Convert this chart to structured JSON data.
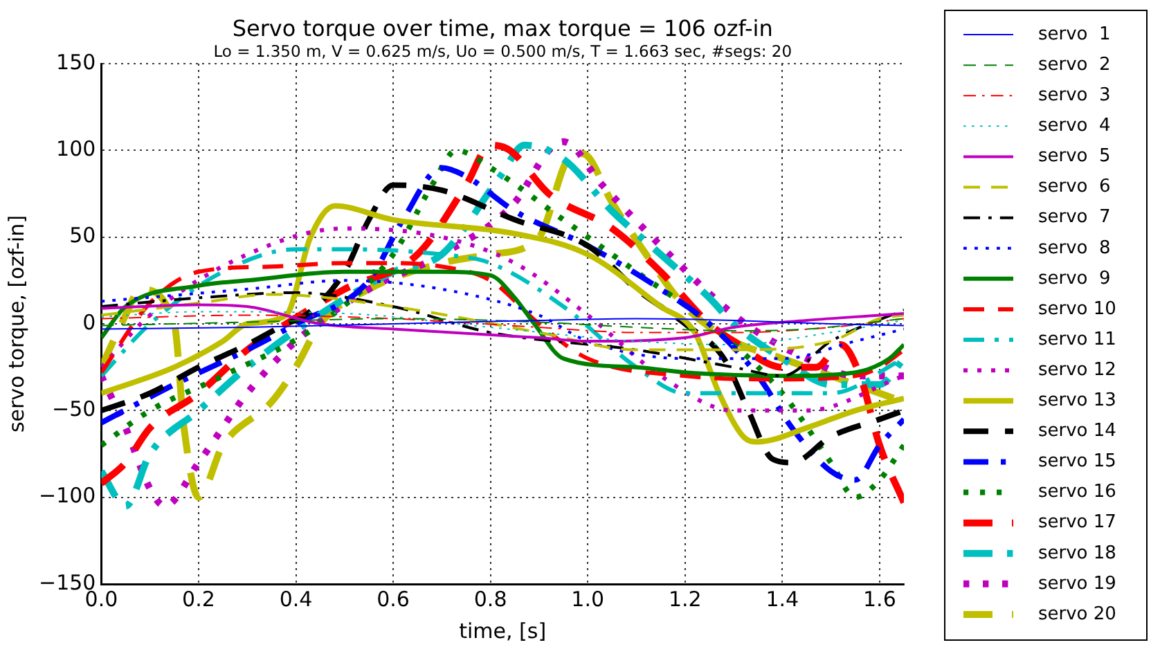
{
  "chart_data": {
    "type": "line",
    "title": "Servo torque over time, max torque = 106 ozf-in",
    "subtitle": "Lo = 1.350 m, V = 0.625 m/s, Uo = 0.500 m/s, T = 1.663 sec, #segs: 20",
    "xlabel": "time, [s]",
    "ylabel": "servo torque, [ozf-in]",
    "xlim": [
      0,
      1.65
    ],
    "xticks": [
      {
        "value": 0,
        "label": "0.0"
      },
      {
        "value": 0.2,
        "label": "0.2"
      },
      {
        "value": 0.4,
        "label": "0.4"
      },
      {
        "value": 0.6,
        "label": "0.6"
      },
      {
        "value": 0.8,
        "label": "0.8"
      },
      {
        "value": 1,
        "label": "1.0"
      },
      {
        "value": 1.2,
        "label": "1.2"
      },
      {
        "value": 1.4,
        "label": "1.4"
      },
      {
        "value": 1.6,
        "label": "1.6"
      }
    ],
    "ylim": [
      -150,
      150
    ],
    "yticks": [
      -150,
      -100,
      -50,
      0,
      50,
      100,
      150
    ],
    "grid": true,
    "legend": "right",
    "marker": "none",
    "series": [
      {
        "name": "servo  1",
        "color": "#0000ff",
        "line_style": "solid",
        "x": [
          0,
          0.3,
          0.6,
          0.9,
          1.1,
          1.3,
          1.5,
          1.65
        ],
        "values": [
          -3,
          -2,
          0,
          2,
          3,
          2,
          0,
          -1
        ]
      },
      {
        "name": "servo  2",
        "color": "#008000",
        "line_style": "dashed",
        "x": [
          0,
          0.3,
          0.6,
          0.9,
          1.1,
          1.3,
          1.45,
          1.65
        ],
        "values": [
          -1,
          1,
          3,
          1,
          -2,
          -4,
          -3,
          3
        ]
      },
      {
        "name": "servo  3",
        "color": "#ff0000",
        "line_style": "dashdot",
        "x": [
          0,
          0.3,
          0.6,
          0.9,
          1.1,
          1.3,
          1.5,
          1.65
        ],
        "values": [
          3,
          5,
          3,
          -2,
          -5,
          -5,
          -2,
          3
        ]
      },
      {
        "name": "servo  4",
        "color": "#00bfbf",
        "line_style": "dotted",
        "x": [
          0,
          0.2,
          0.5,
          0.8,
          1.1,
          1.3,
          1.5,
          1.65
        ],
        "values": [
          4,
          7,
          6,
          -2,
          -10,
          -12,
          -5,
          2
        ]
      },
      {
        "name": "servo  5",
        "color": "#bf00bf",
        "line_style": "solid",
        "x": [
          0,
          0.2,
          0.3,
          0.45,
          0.6,
          0.9,
          1.0,
          1.2,
          1.3,
          1.45,
          1.6,
          1.65
        ],
        "values": [
          9,
          11,
          10,
          0,
          -3,
          -8,
          -10,
          -8,
          -2,
          2,
          5,
          6
        ]
      },
      {
        "name": "servo  6",
        "color": "#bfbf00",
        "line_style": "dashed",
        "x": [
          0,
          0.2,
          0.35,
          0.6,
          0.9,
          1.1,
          1.3,
          1.5,
          1.6,
          1.65
        ],
        "values": [
          5,
          12,
          17,
          10,
          -5,
          -15,
          -15,
          -10,
          3,
          5
        ]
      },
      {
        "name": "servo  7",
        "color": "#000000",
        "line_style": "dashdot",
        "x": [
          0,
          0.2,
          0.4,
          0.6,
          0.8,
          1.1,
          1.3,
          1.4,
          1.5,
          1.65
        ],
        "values": [
          10,
          15,
          18,
          10,
          -5,
          -15,
          -25,
          -30,
          -10,
          8
        ]
      },
      {
        "name": "servo  8",
        "color": "#0000ff",
        "line_style": "dotted",
        "x": [
          0,
          0.3,
          0.5,
          0.7,
          0.9,
          1.0,
          1.2,
          1.4,
          1.55,
          1.65
        ],
        "values": [
          13,
          20,
          25,
          20,
          5,
          -10,
          -20,
          -20,
          -10,
          -3
        ]
      },
      {
        "name": "servo  9",
        "color": "#008000",
        "line_style": "solid",
        "x": [
          0,
          0.05,
          0.2,
          0.3,
          0.5,
          0.7,
          0.8,
          0.85,
          0.89,
          0.95,
          1.1,
          1.2,
          1.4,
          1.55,
          1.62,
          1.65
        ],
        "values": [
          -8,
          10,
          22,
          25,
          30,
          30,
          28,
          15,
          0,
          -20,
          -25,
          -28,
          -30,
          -28,
          -20,
          -12
        ]
      },
      {
        "name": "servo 10",
        "color": "#ff0000",
        "line_style": "dashed",
        "x": [
          0,
          0.1,
          0.2,
          0.35,
          0.5,
          0.6,
          0.7,
          0.8,
          0.9,
          1.0,
          1.2,
          1.4,
          1.55,
          1.6,
          1.65
        ],
        "values": [
          -28,
          12,
          30,
          33,
          35,
          35,
          33,
          25,
          0,
          -20,
          -30,
          -32,
          -30,
          -25,
          -15
        ]
      },
      {
        "name": "servo 11",
        "color": "#00bfbf",
        "line_style": "dashdot",
        "x": [
          0,
          0.1,
          0.25,
          0.4,
          0.5,
          0.7,
          0.8,
          0.95,
          1.1,
          1.2,
          1.5,
          1.65
        ],
        "values": [
          -30,
          0,
          30,
          43,
          43,
          40,
          35,
          10,
          -25,
          -40,
          -40,
          -20
        ]
      },
      {
        "name": "servo 12",
        "color": "#bf00bf",
        "line_style": "dotted",
        "x": [
          0,
          0.1,
          0.3,
          0.5,
          0.7,
          0.85,
          1.0,
          1.15,
          1.3,
          1.45,
          1.65
        ],
        "values": [
          -25,
          5,
          40,
          55,
          50,
          35,
          5,
          -30,
          -50,
          -50,
          -30
        ]
      },
      {
        "name": "servo 13",
        "color": "#bfbf00",
        "line_style": "solid",
        "x": [
          0,
          0.15,
          0.25,
          0.3,
          0.38,
          0.43,
          0.48,
          0.6,
          0.85,
          1.0,
          1.15,
          1.22,
          1.27,
          1.32,
          1.35,
          1.45,
          1.55,
          1.65
        ],
        "values": [
          -40,
          -25,
          -10,
          0,
          5,
          50,
          68,
          60,
          52,
          40,
          10,
          -5,
          -40,
          -65,
          -68,
          -60,
          -50,
          -43
        ]
      },
      {
        "name": "servo 14",
        "color": "#000000",
        "line_style": "dashed",
        "x": [
          0,
          0.1,
          0.2,
          0.3,
          0.38,
          0.42,
          0.5,
          0.55,
          0.6,
          0.7,
          0.85,
          1.0,
          1.1,
          1.2,
          1.28,
          1.33,
          1.38,
          1.42,
          1.5,
          1.6,
          1.65
        ],
        "values": [
          -50,
          -40,
          -25,
          -12,
          0,
          5,
          30,
          60,
          80,
          77,
          60,
          45,
          20,
          0,
          -20,
          -50,
          -78,
          -80,
          -65,
          -55,
          -50
        ]
      },
      {
        "name": "servo 15",
        "color": "#0000ff",
        "line_style": "dashdot",
        "x": [
          0,
          0.15,
          0.3,
          0.4,
          0.55,
          0.62,
          0.7,
          0.75,
          0.85,
          1.0,
          1.15,
          1.25,
          1.35,
          1.42,
          1.5,
          1.55,
          1.6,
          1.65
        ],
        "values": [
          -57,
          -35,
          -15,
          0,
          25,
          60,
          90,
          85,
          65,
          45,
          20,
          0,
          -30,
          -60,
          -85,
          -90,
          -70,
          -55
        ]
      },
      {
        "name": "servo 16",
        "color": "#008000",
        "line_style": "dotted",
        "x": [
          0,
          0.1,
          0.25,
          0.45,
          0.6,
          0.68,
          0.73,
          0.8,
          0.95,
          1.1,
          1.25,
          1.4,
          1.5,
          1.55,
          1.6,
          1.65
        ],
        "values": [
          -70,
          -50,
          -30,
          0,
          40,
          80,
          100,
          90,
          60,
          30,
          0,
          -40,
          -80,
          -100,
          -90,
          -70
        ]
      },
      {
        "name": "servo 17",
        "color": "#ff0000",
        "line_style": "dashed",
        "x": [
          0,
          0.05,
          0.1,
          0.2,
          0.3,
          0.38,
          0.5,
          0.65,
          0.75,
          0.8,
          0.84,
          0.92,
          1.05,
          1.15,
          1.25,
          1.3,
          1.4,
          1.47,
          1.52,
          1.56,
          1.6,
          1.65
        ],
        "values": [
          -92,
          -80,
          -60,
          -40,
          -15,
          0,
          20,
          40,
          80,
          103,
          100,
          75,
          55,
          30,
          0,
          -10,
          -25,
          -25,
          -12,
          -30,
          -70,
          -103
        ]
      },
      {
        "name": "servo 18",
        "color": "#00bfbf",
        "line_style": "dashdot",
        "x": [
          0,
          0.05,
          0.1,
          0.2,
          0.3,
          0.42,
          0.6,
          0.7,
          0.82,
          0.87,
          0.95,
          1.05,
          1.15,
          1.25,
          1.3,
          1.4,
          1.5,
          1.6,
          1.65
        ],
        "values": [
          -85,
          -105,
          -75,
          -50,
          -25,
          0,
          30,
          40,
          85,
          103,
          95,
          65,
          40,
          15,
          0,
          -20,
          -35,
          -35,
          -20
        ]
      },
      {
        "name": "servo 19",
        "color": "#bf00bf",
        "line_style": "dotted",
        "x": [
          0,
          0.05,
          0.1,
          0.13,
          0.2,
          0.3,
          0.4,
          0.55,
          0.7,
          0.85,
          0.92,
          0.95,
          1.03,
          1.15,
          1.28,
          1.35,
          1.45,
          1.55,
          1.65
        ],
        "values": [
          -30,
          -60,
          -95,
          -105,
          -80,
          -40,
          -10,
          20,
          40,
          70,
          100,
          105,
          80,
          45,
          10,
          -5,
          -20,
          -30,
          -30
        ]
      },
      {
        "name": "servo 20",
        "color": "#bfbf00",
        "line_style": "dashed",
        "x": [
          0,
          0.05,
          0.08,
          0.15,
          0.17,
          0.2,
          0.25,
          0.35,
          0.4,
          0.45,
          0.55,
          0.7,
          0.8,
          0.9,
          0.96,
          0.99,
          1.05,
          1.12,
          1.2,
          1.3,
          1.4,
          1.5,
          1.6,
          1.65
        ],
        "values": [
          -25,
          5,
          20,
          0,
          -60,
          -100,
          -70,
          -45,
          -25,
          0,
          20,
          35,
          40,
          50,
          95,
          98,
          70,
          40,
          10,
          -10,
          -20,
          -30,
          -40,
          -45
        ]
      }
    ]
  }
}
